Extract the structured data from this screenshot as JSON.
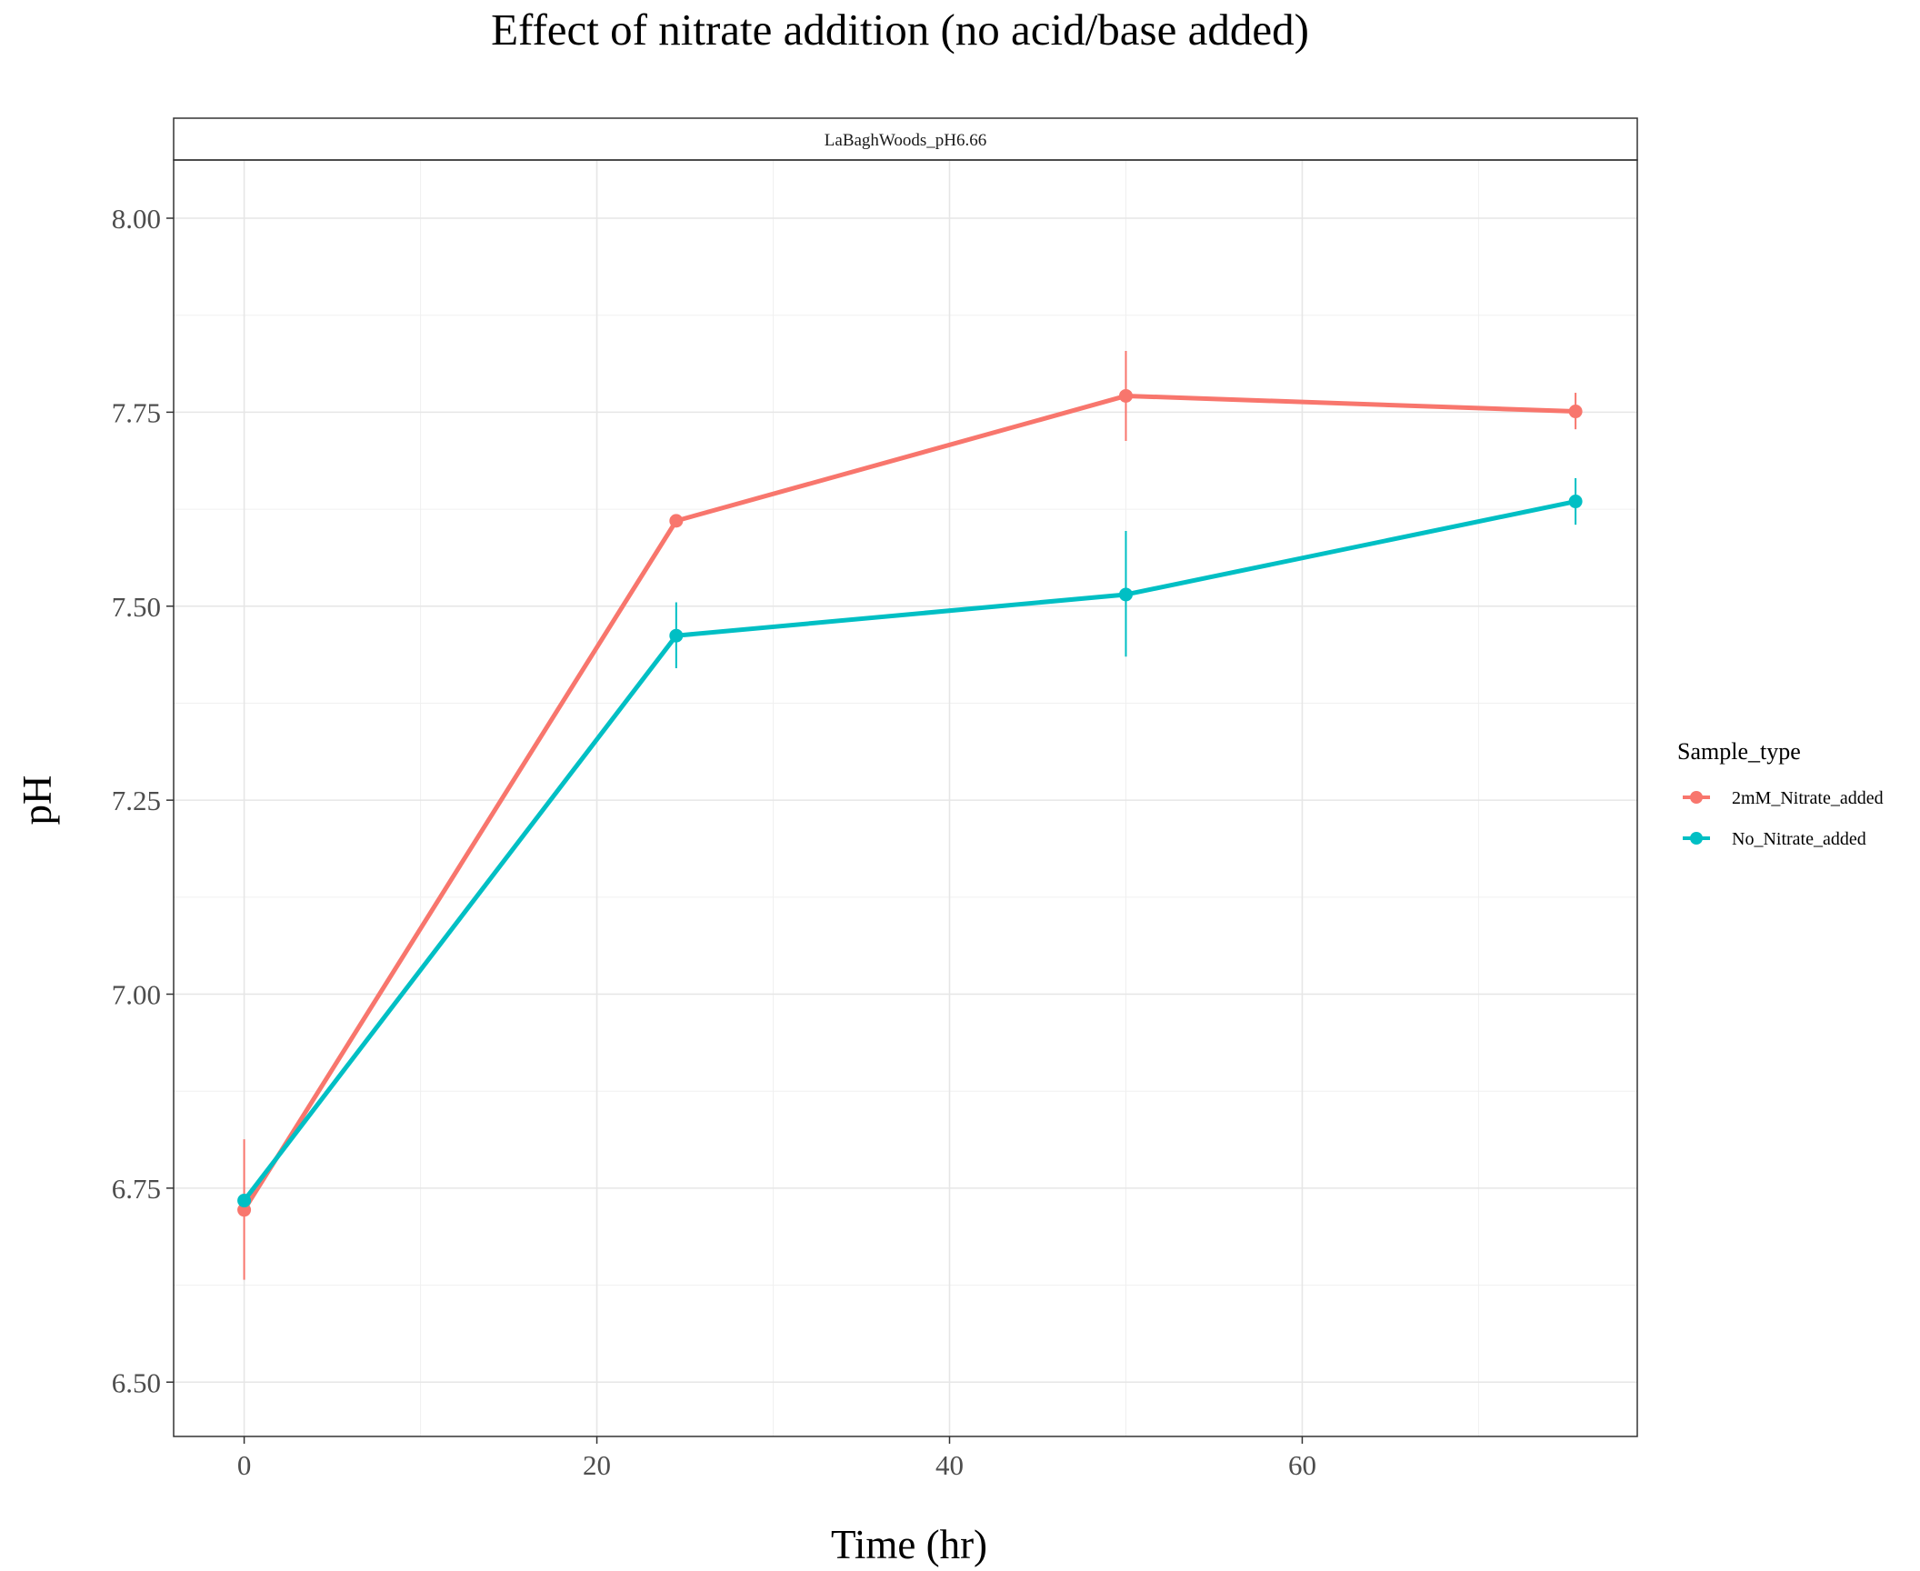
{
  "chart_data": {
    "type": "line",
    "title": "Effect of nitrate addition (no acid/base added)",
    "facet_label": "LaBaghWoods_pH6.66",
    "xlabel": "Time (hr)",
    "ylabel": "pH",
    "xlim": [
      -4,
      79
    ],
    "ylim": [
      6.43,
      8.075
    ],
    "x_ticks": [
      0,
      20,
      40,
      60
    ],
    "x_tick_labels": [
      "0",
      "20",
      "40",
      "60"
    ],
    "y_ticks": [
      6.5,
      6.75,
      7.0,
      7.25,
      7.5,
      7.75,
      8.0
    ],
    "y_tick_labels": [
      "6.50",
      "6.75",
      "7.00",
      "7.25",
      "7.50",
      "7.75",
      "8.00"
    ],
    "grid": true,
    "legend": {
      "title": "Sample_type",
      "position": "right"
    },
    "series": [
      {
        "name": "2mM_Nitrate_added",
        "color": "#F8766D",
        "x": [
          0,
          24.5,
          50,
          75.5
        ],
        "y": [
          6.722,
          7.61,
          7.771,
          7.751
        ],
        "err_low": [
          6.632,
          7.61,
          7.713,
          7.728
        ],
        "err_high": [
          6.813,
          7.61,
          7.829,
          7.775
        ]
      },
      {
        "name": "No_Nitrate_added",
        "color": "#00BFC4",
        "x": [
          0,
          24.5,
          50,
          75.5
        ],
        "y": [
          6.734,
          7.462,
          7.515,
          7.635
        ],
        "err_low": [
          6.734,
          7.42,
          7.435,
          7.605
        ],
        "err_high": [
          6.734,
          7.505,
          7.597,
          7.665
        ]
      }
    ]
  }
}
